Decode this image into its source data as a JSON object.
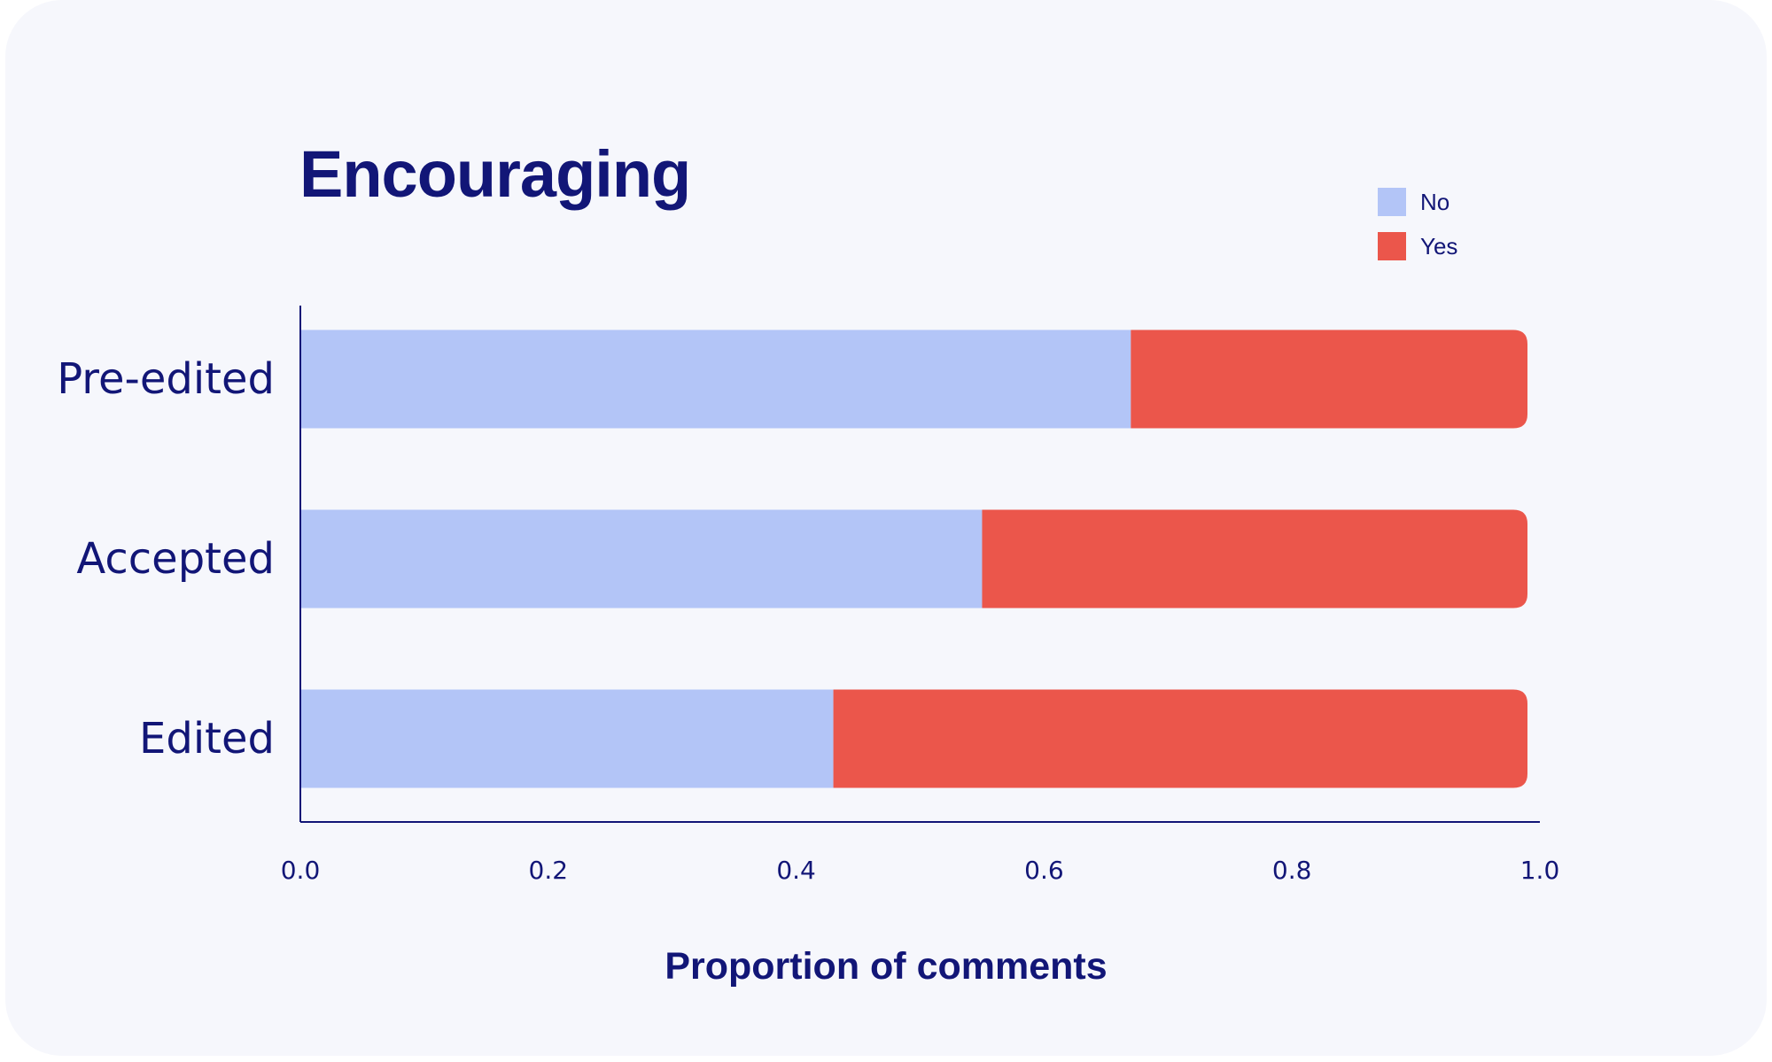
{
  "chart_data": {
    "type": "bar",
    "orientation": "horizontal",
    "stacked": true,
    "title": "Encouraging",
    "xlabel": "Proportion of comments",
    "ylabel": "",
    "xlim": [
      0.0,
      1.0
    ],
    "categories": [
      "Pre-edited",
      "Accepted",
      "Edited"
    ],
    "series": [
      {
        "name": "No",
        "color": "#b3c5f7",
        "values": [
          0.67,
          0.55,
          0.43
        ]
      },
      {
        "name": "Yes",
        "color": "#eb564b",
        "values": [
          0.32,
          0.44,
          0.56
        ]
      }
    ],
    "xticks": [
      "0.0",
      "0.2",
      "0.4",
      "0.6",
      "0.8",
      "1.0"
    ],
    "grid": false,
    "legend_position": "top-right"
  },
  "colors": {
    "axis": "#121677",
    "text": "#121677",
    "background": "#f6f7fc"
  }
}
